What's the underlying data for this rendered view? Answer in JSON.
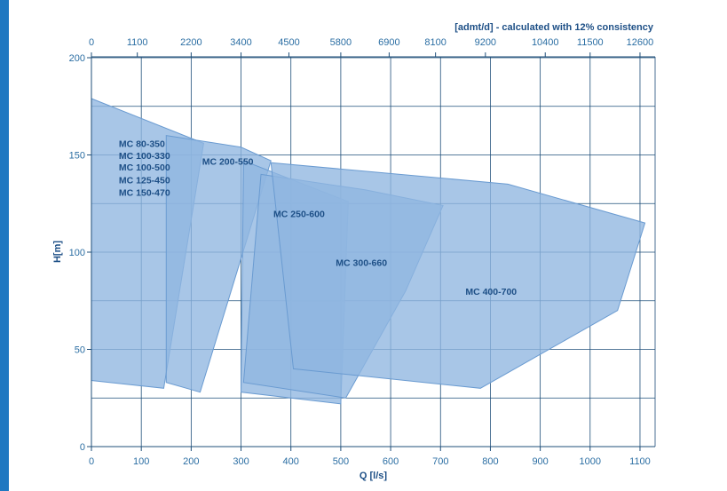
{
  "chart_data": {
    "type": "area",
    "title": "",
    "xlabel": "Q [l/s]",
    "ylabel": "H[m]",
    "secondary_x_label": "[admt/d] - calculated with 12% consistency",
    "xlim": [
      0,
      1130
    ],
    "ylim": [
      0,
      200
    ],
    "x_ticks": [
      0,
      100,
      200,
      300,
      400,
      500,
      600,
      700,
      800,
      900,
      1000,
      1100
    ],
    "y_ticks": [
      0,
      50,
      100,
      150,
      200
    ],
    "top_ticks": [
      {
        "label": "0",
        "x": 0
      },
      {
        "label": "1100",
        "x": 92
      },
      {
        "label": "2200",
        "x": 200
      },
      {
        "label": "3400",
        "x": 300
      },
      {
        "label": "4500",
        "x": 396
      },
      {
        "label": "5800",
        "x": 500
      },
      {
        "label": "6900",
        "x": 597
      },
      {
        "label": "8100",
        "x": 690
      },
      {
        "label": "9200",
        "x": 790
      },
      {
        "label": "10400",
        "x": 910
      },
      {
        "label": "11500",
        "x": 1000
      },
      {
        "label": "12600",
        "x": 1100
      }
    ],
    "grid": true,
    "fill_color": "#8fb6e0",
    "stroke_color": "#6a9bd1",
    "series": [
      {
        "name": "MC 80-350 / MC 100-330 / MC 100-500 / MC 125-450 / MC 150-470",
        "points": [
          [
            0,
            179
          ],
          [
            225,
            156
          ],
          [
            145,
            30
          ],
          [
            0,
            34
          ]
        ]
      },
      {
        "name": "MC 200-550",
        "points": [
          [
            150,
            160
          ],
          [
            300,
            154
          ],
          [
            360,
            147
          ],
          [
            218,
            28
          ],
          [
            150,
            33
          ]
        ]
      },
      {
        "name": "MC 250-600",
        "points": [
          [
            305,
            147
          ],
          [
            515,
            126
          ],
          [
            500,
            22
          ],
          [
            300,
            28
          ]
        ]
      },
      {
        "name": "MC 300-660",
        "points": [
          [
            340,
            140
          ],
          [
            550,
            132
          ],
          [
            705,
            124
          ],
          [
            630,
            80
          ],
          [
            510,
            25
          ],
          [
            305,
            33
          ]
        ]
      },
      {
        "name": "MC 400-700",
        "points": [
          [
            360,
            146
          ],
          [
            835,
            135
          ],
          [
            1110,
            115
          ],
          [
            1055,
            70
          ],
          [
            780,
            30
          ],
          [
            405,
            40
          ]
        ]
      }
    ],
    "labels": [
      {
        "text": "MC 80-350",
        "x": 55,
        "y": 154
      },
      {
        "text": "MC 100-330",
        "x": 55,
        "y": 148
      },
      {
        "text": "MC 100-500",
        "x": 55,
        "y": 142
      },
      {
        "text": "MC 125-450",
        "x": 55,
        "y": 135.5
      },
      {
        "text": "MC 150-470",
        "x": 55,
        "y": 129
      },
      {
        "text": "MC 200-550",
        "x": 222,
        "y": 145
      },
      {
        "text": "MC 250-600",
        "x": 365,
        "y": 118
      },
      {
        "text": "MC 300-660",
        "x": 490,
        "y": 93
      },
      {
        "text": "MC 400-700",
        "x": 750,
        "y": 78
      }
    ]
  }
}
